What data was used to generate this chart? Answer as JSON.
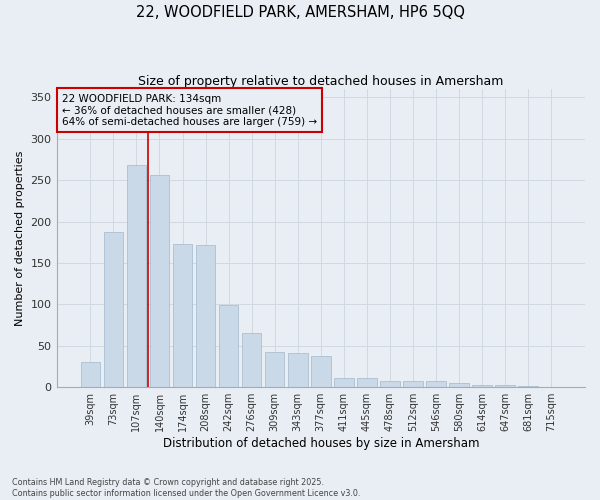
{
  "title": "22, WOODFIELD PARK, AMERSHAM, HP6 5QQ",
  "subtitle": "Size of property relative to detached houses in Amersham",
  "xlabel": "Distribution of detached houses by size in Amersham",
  "ylabel": "Number of detached properties",
  "categories": [
    "39sqm",
    "73sqm",
    "107sqm",
    "140sqm",
    "174sqm",
    "208sqm",
    "242sqm",
    "276sqm",
    "309sqm",
    "343sqm",
    "377sqm",
    "411sqm",
    "445sqm",
    "478sqm",
    "512sqm",
    "546sqm",
    "580sqm",
    "614sqm",
    "647sqm",
    "681sqm",
    "715sqm"
  ],
  "values": [
    30,
    187,
    268,
    256,
    173,
    172,
    99,
    65,
    42,
    41,
    38,
    11,
    11,
    8,
    7,
    7,
    5,
    3,
    3,
    1,
    0
  ],
  "bar_color": "#c9d9e8",
  "bar_edge_color": "#a0b8cc",
  "grid_color": "#d0d8e0",
  "bg_color": "#e8eef4",
  "vline_color": "#cc0000",
  "annotation_text": "22 WOODFIELD PARK: 134sqm\n← 36% of detached houses are smaller (428)\n64% of semi-detached houses are larger (759) →",
  "annotation_box_color": "#cc0000",
  "ylim": [
    0,
    360
  ],
  "yticks": [
    0,
    50,
    100,
    150,
    200,
    250,
    300,
    350
  ],
  "footer_line1": "Contains HM Land Registry data © Crown copyright and database right 2025.",
  "footer_line2": "Contains public sector information licensed under the Open Government Licence v3.0."
}
